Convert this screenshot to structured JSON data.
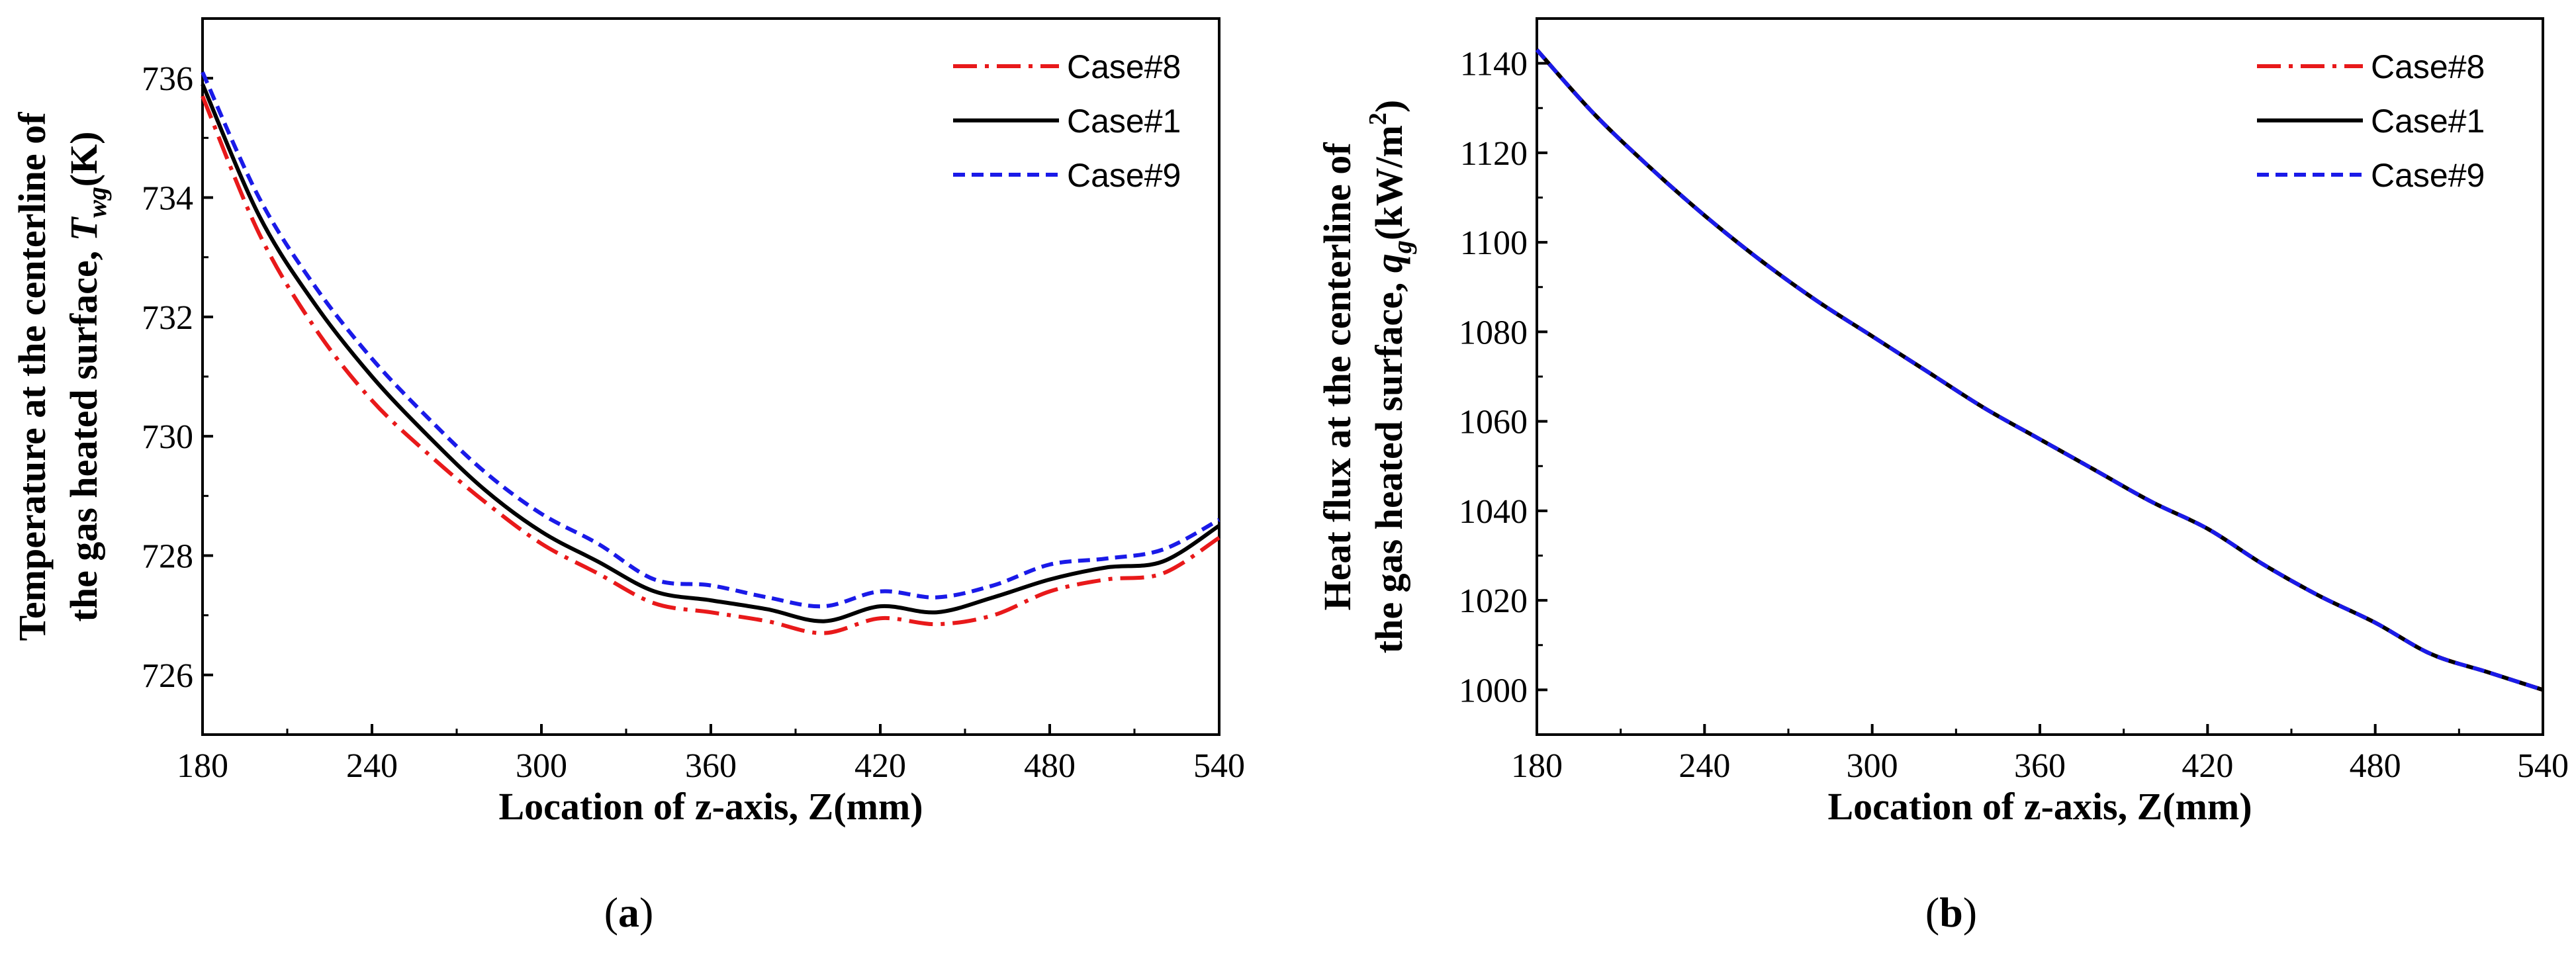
{
  "chart_data": [
    {
      "type": "line",
      "panel_label": "(a)",
      "panel_letter": "a",
      "xlabel": "Location of z-axis, Z(mm)",
      "ylabel_line1": "Temperature at the centerline of",
      "ylabel_line2_prefix": "the gas heated surface, ",
      "ylabel_symbol": "T",
      "ylabel_subscript": "wg",
      "ylabel_unit": "(K)",
      "xlim": [
        180,
        540
      ],
      "ylim": [
        725,
        737
      ],
      "xticks": [
        180,
        240,
        300,
        360,
        420,
        480,
        540
      ],
      "yticks": [
        726,
        728,
        730,
        732,
        734,
        736
      ],
      "legend_position": "top-right",
      "x": [
        180,
        200,
        220,
        240,
        260,
        280,
        300,
        320,
        340,
        360,
        380,
        400,
        420,
        440,
        460,
        480,
        500,
        520,
        540
      ],
      "series": [
        {
          "name": "Case#8",
          "color": "#e8191a",
          "dash": "dash-dot",
          "values": [
            735.7,
            733.4,
            731.8,
            730.6,
            729.7,
            728.9,
            728.2,
            727.7,
            727.2,
            727.05,
            726.9,
            726.7,
            726.95,
            726.85,
            727.0,
            727.4,
            727.6,
            727.7,
            728.3
          ]
        },
        {
          "name": "Case#1",
          "color": "#000000",
          "dash": "solid",
          "values": [
            735.9,
            733.7,
            732.2,
            731.0,
            730.0,
            729.1,
            728.4,
            727.9,
            727.4,
            727.25,
            727.1,
            726.9,
            727.15,
            727.05,
            727.3,
            727.6,
            727.8,
            727.9,
            728.5
          ]
        },
        {
          "name": "Case#9",
          "color": "#1a1ae8",
          "dash": "dash",
          "values": [
            736.1,
            734.0,
            732.5,
            731.3,
            730.3,
            729.4,
            728.7,
            728.2,
            727.6,
            727.5,
            727.3,
            727.15,
            727.4,
            727.3,
            727.5,
            727.85,
            727.95,
            728.1,
            728.6
          ]
        }
      ]
    },
    {
      "type": "line",
      "panel_label": "(b)",
      "panel_letter": "b",
      "xlabel": "Location of z-axis, Z(mm)",
      "ylabel_line1": "Heat flux at the centerline of",
      "ylabel_line2_prefix": "the gas heated surface, ",
      "ylabel_symbol": "q",
      "ylabel_subscript": "g",
      "ylabel_unit_prefix": "(kW/m",
      "ylabel_unit_sup": "2",
      "ylabel_unit_suffix": ")",
      "xlim": [
        180,
        540
      ],
      "ylim": [
        990,
        1150
      ],
      "xticks": [
        180,
        240,
        300,
        360,
        420,
        480,
        540
      ],
      "yticks": [
        1000,
        1020,
        1040,
        1060,
        1080,
        1100,
        1120,
        1140
      ],
      "legend_position": "top-right",
      "x": [
        180,
        200,
        220,
        240,
        260,
        280,
        300,
        320,
        340,
        360,
        380,
        400,
        420,
        440,
        460,
        480,
        500,
        520,
        540
      ],
      "series": [
        {
          "name": "Case#8",
          "color": "#e8191a",
          "dash": "dash-dot",
          "values": [
            1143,
            1129,
            1117,
            1106,
            1096,
            1087,
            1079,
            1071,
            1063,
            1056,
            1049,
            1042,
            1036,
            1028,
            1021,
            1015,
            1008,
            1004,
            1000
          ]
        },
        {
          "name": "Case#1",
          "color": "#000000",
          "dash": "solid",
          "values": [
            1143,
            1129,
            1117,
            1106,
            1096,
            1087,
            1079,
            1071,
            1063,
            1056,
            1049,
            1042,
            1036,
            1028,
            1021,
            1015,
            1008,
            1004,
            1000
          ]
        },
        {
          "name": "Case#9",
          "color": "#1a1ae8",
          "dash": "dash",
          "values": [
            1143,
            1129,
            1117,
            1106,
            1096,
            1087,
            1079,
            1071,
            1063,
            1056,
            1049,
            1042,
            1036,
            1028,
            1021,
            1015,
            1008,
            1004,
            1000
          ]
        }
      ]
    }
  ]
}
